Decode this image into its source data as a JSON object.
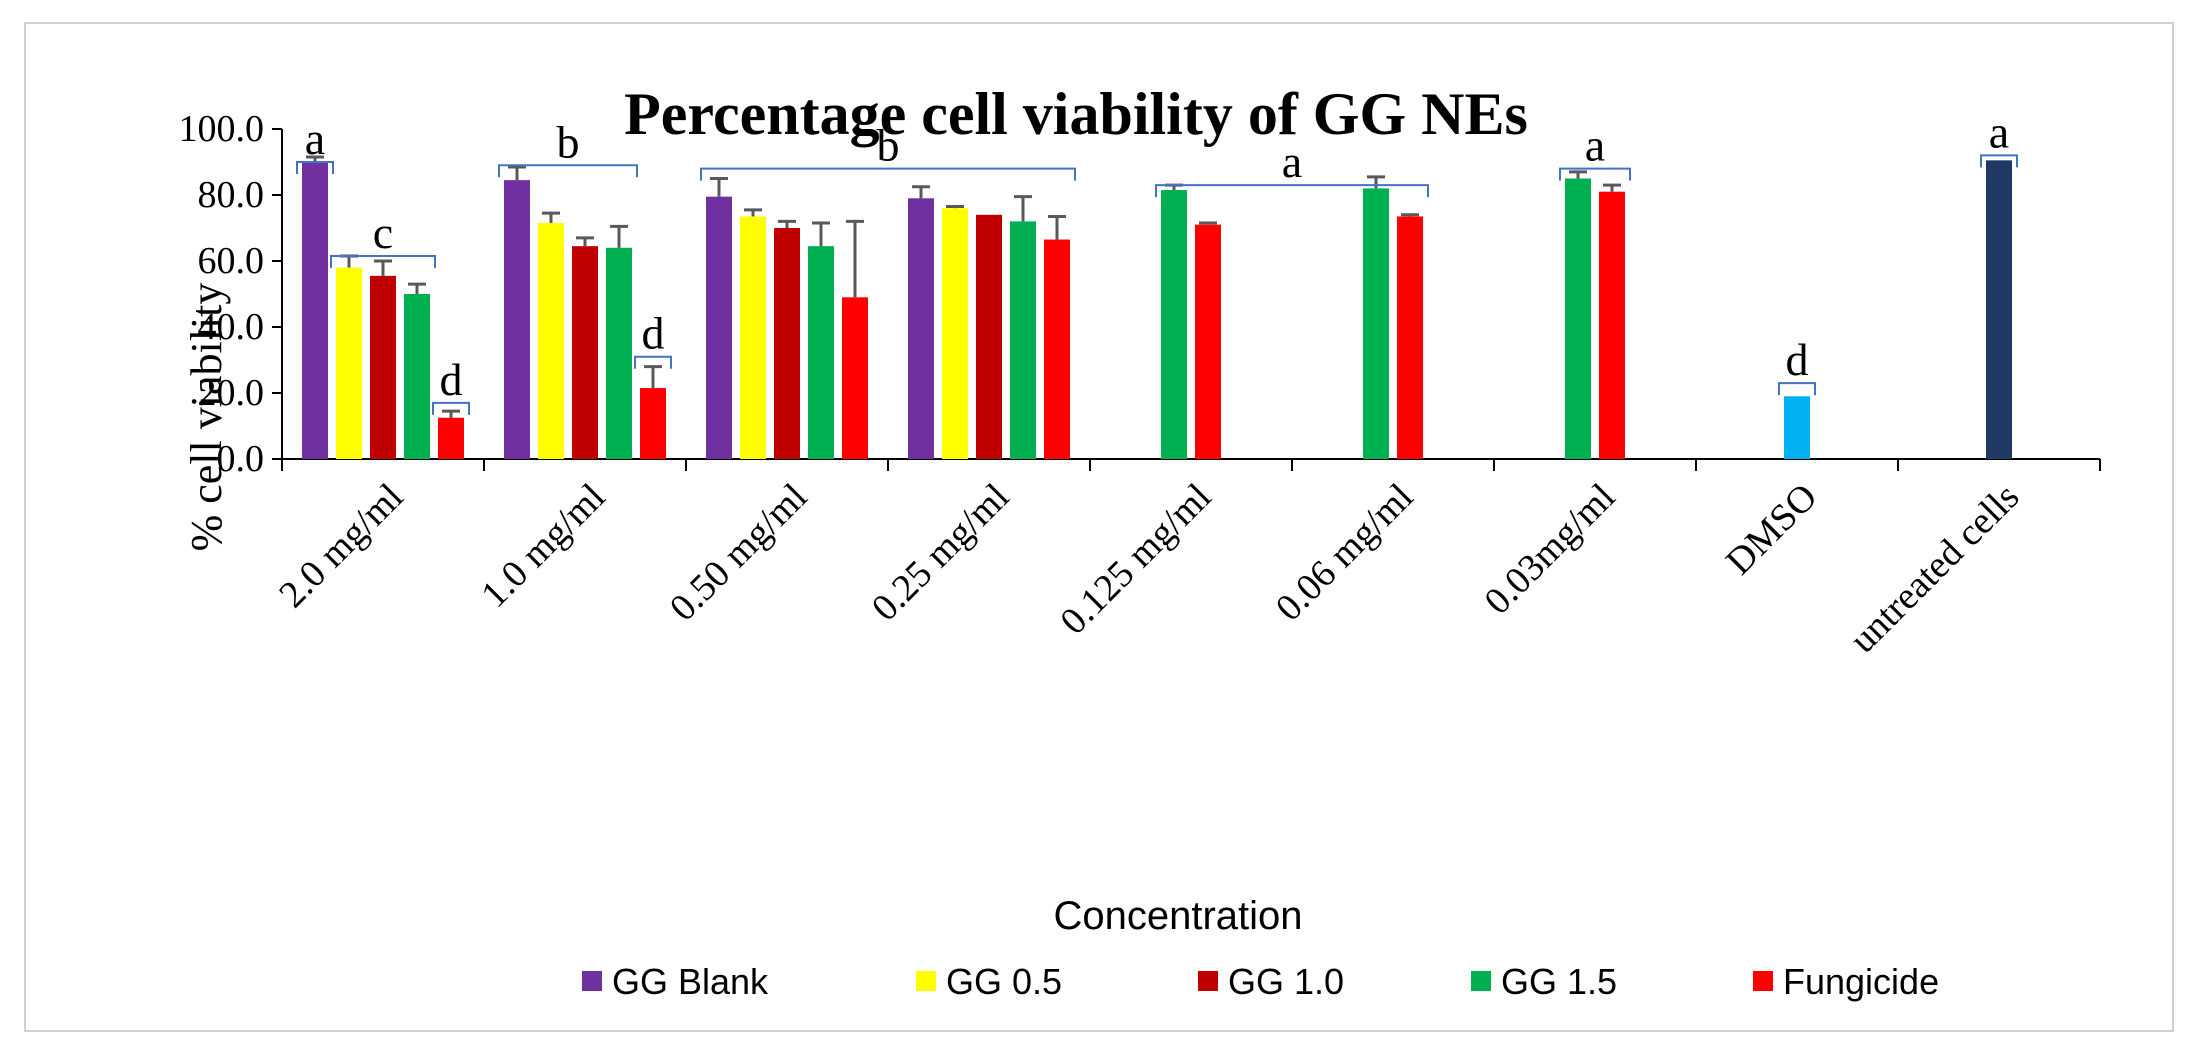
{
  "chart_data": {
    "type": "bar",
    "title": "Percentage cell viability of GG NEs",
    "xlabel": "Concentration",
    "ylabel": "% cell viability",
    "ylim": [
      0,
      100
    ],
    "yticks": [
      "0.0",
      "20.0",
      "40.0",
      "60.0",
      "80.0",
      "100.0"
    ],
    "categories": [
      "2.0 mg/ml",
      "1.0 mg/ml",
      "0.50 mg/ml",
      "0.25 mg/ml",
      "0.125 mg/ml",
      "0.06 mg/ml",
      "0.03mg/ml",
      "DMSO",
      "untreated cells"
    ],
    "series": [
      {
        "name": "GG Blank",
        "color": "#7030a0",
        "values": [
          90.0,
          84.5,
          79.5,
          79.0,
          null,
          null,
          null,
          null,
          null
        ],
        "errors": [
          1.5,
          4.0,
          5.5,
          3.5,
          null,
          null,
          null,
          null,
          null
        ]
      },
      {
        "name": "GG 0.5",
        "color": "#ffff00",
        "values": [
          58.0,
          71.5,
          73.5,
          76.0,
          null,
          null,
          null,
          null,
          null
        ],
        "errors": [
          3.5,
          3.0,
          2.0,
          0.5,
          null,
          null,
          null,
          null,
          null
        ]
      },
      {
        "name": "GG 1.0",
        "color": "#c00000",
        "values": [
          55.5,
          64.5,
          70.0,
          74.0,
          null,
          null,
          null,
          null,
          null
        ],
        "errors": [
          4.5,
          2.5,
          2.0,
          0.0,
          null,
          null,
          null,
          null,
          null
        ]
      },
      {
        "name": "GG 1.5",
        "color": "#00b050",
        "values": [
          50.0,
          64.0,
          64.5,
          72.0,
          81.5,
          82.0,
          85.0,
          null,
          null
        ],
        "errors": [
          3.0,
          6.5,
          7.0,
          7.5,
          1.5,
          3.5,
          2.0,
          null,
          null
        ]
      },
      {
        "name": "Fungicide",
        "color": "#ff0000",
        "values": [
          12.5,
          21.5,
          49.0,
          66.5,
          71.0,
          73.5,
          81.0,
          null,
          null
        ],
        "errors": [
          2.0,
          6.5,
          23.0,
          7.0,
          0.5,
          0.5,
          2.0,
          null,
          null
        ]
      }
    ],
    "extra_bars": [
      {
        "category": "DMSO",
        "value": 19.0,
        "color": "#00b0f0"
      },
      {
        "category": "untreated cells",
        "value": 90.5,
        "color": "#1f3864"
      }
    ],
    "annotations": [
      {
        "letter": "a",
        "group": "2.0 mg/ml GG Blank"
      },
      {
        "letter": "c",
        "group": "2.0 mg/ml GG 0.5 – GG 1.5"
      },
      {
        "letter": "d",
        "group": "2.0 mg/ml Fungicide"
      },
      {
        "letter": "b",
        "group": "1.0 mg/ml GG Blank – GG 1.5"
      },
      {
        "letter": "d",
        "group": "1.0 mg/ml Fungicide"
      },
      {
        "letter": "b",
        "group": "0.50 – 0.25 mg/ml"
      },
      {
        "letter": "a",
        "group": "0.125 – 0.06 mg/ml"
      },
      {
        "letter": "a",
        "group": "0.03mg/ml"
      },
      {
        "letter": "d",
        "group": "DMSO"
      },
      {
        "letter": "a",
        "group": "untreated cells"
      }
    ],
    "legend_position": "bottom"
  }
}
